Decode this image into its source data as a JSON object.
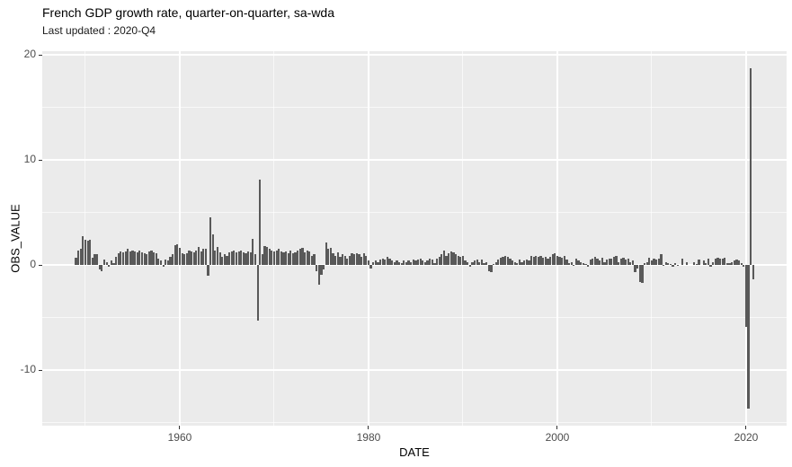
{
  "header": {
    "title": "French GDP growth rate, quarter-on-quarter, sa-wda",
    "subtitle": "Last updated : 2020-Q4"
  },
  "chart_data": {
    "type": "bar",
    "title": "French GDP growth rate, quarter-on-quarter, sa-wda",
    "subtitle": "Last updated : 2020-Q4",
    "xlabel": "DATE",
    "ylabel": "OBS_VALUE",
    "x_ticks": [
      1960,
      1980,
      2000,
      2020
    ],
    "x_minor_gridlines": [
      1950,
      1970,
      1990,
      2010
    ],
    "y_ticks": [
      20,
      10,
      0,
      -10
    ],
    "y_minor_gridlines": [
      15,
      5,
      -5,
      -15
    ],
    "xlim": [
      1945.43,
      2024.29
    ],
    "ylim": [
      -15.3,
      20.35
    ],
    "grid": true,
    "legend": "none",
    "frequency": "quarterly",
    "start_period": "1949-Q1",
    "end_period": "2020-Q4",
    "notable_points": {
      "1968-Q2": -5.3,
      "1968-Q3": 8.1,
      "2020-Q1": -5.9,
      "2020-Q2": -13.7,
      "2020-Q3": 18.7,
      "2020-Q4": -1.4
    },
    "series": [
      {
        "name": "OBS_VALUE",
        "values": [
          0.7,
          1.4,
          1.5,
          2.7,
          2.4,
          2.3,
          2.4,
          0.7,
          1.0,
          1.0,
          -0.4,
          -0.6,
          0.5,
          0.3,
          -0.2,
          0.4,
          0.2,
          0.8,
          1.1,
          1.3,
          1.2,
          1.3,
          1.5,
          1.3,
          1.4,
          1.3,
          1.2,
          1.4,
          1.2,
          1.1,
          1.0,
          1.3,
          1.4,
          1.2,
          1.1,
          0.6,
          0.4,
          -0.2,
          0.5,
          0.4,
          0.8,
          1.0,
          1.9,
          2.0,
          1.6,
          1.1,
          1.0,
          1.1,
          1.4,
          1.3,
          1.2,
          1.4,
          1.7,
          1.3,
          1.5,
          1.5,
          -1.0,
          4.5,
          2.9,
          1.4,
          1.7,
          1.2,
          0.8,
          1.0,
          0.9,
          1.2,
          1.3,
          1.4,
          1.2,
          1.3,
          1.4,
          1.2,
          1.1,
          1.3,
          1.2,
          2.5,
          1.0,
          -5.3,
          8.1,
          1.0,
          1.8,
          1.7,
          1.5,
          1.4,
          1.3,
          1.4,
          1.5,
          1.3,
          1.2,
          1.3,
          1.1,
          1.4,
          1.1,
          1.2,
          1.4,
          1.5,
          1.6,
          1.2,
          1.4,
          1.3,
          0.9,
          1.0,
          -0.6,
          -1.9,
          -0.9,
          -0.4,
          2.1,
          1.5,
          1.6,
          1.1,
          0.9,
          1.2,
          0.8,
          1.0,
          0.9,
          0.6,
          0.9,
          1.1,
          1.0,
          1.1,
          1.0,
          0.8,
          1.1,
          0.9,
          0.4,
          -0.3,
          0.3,
          0.4,
          0.3,
          0.5,
          0.6,
          0.5,
          0.8,
          0.6,
          0.4,
          0.3,
          0.4,
          0.3,
          0.2,
          0.4,
          0.3,
          0.4,
          0.3,
          0.5,
          0.4,
          0.5,
          0.6,
          0.4,
          0.3,
          0.4,
          0.6,
          0.5,
          0.2,
          0.6,
          0.8,
          1.0,
          1.4,
          0.9,
          1.1,
          1.3,
          1.2,
          1.0,
          0.9,
          0.8,
          0.9,
          0.4,
          0.3,
          -0.2,
          0.3,
          0.4,
          0.5,
          0.3,
          0.5,
          0.2,
          0.3,
          -0.6,
          -0.7,
          0.1,
          0.3,
          0.5,
          0.7,
          0.8,
          0.9,
          0.8,
          0.6,
          0.4,
          0.3,
          0.2,
          0.5,
          0.3,
          0.4,
          0.5,
          0.4,
          0.9,
          0.8,
          0.9,
          0.8,
          0.9,
          0.7,
          0.8,
          0.6,
          0.8,
          1.0,
          1.1,
          0.9,
          0.8,
          0.7,
          0.9,
          0.5,
          0.2,
          0.3,
          -0.1,
          0.6,
          0.4,
          0.3,
          0.2,
          0.1,
          -0.2,
          0.5,
          0.6,
          0.8,
          0.6,
          0.4,
          0.7,
          0.3,
          0.5,
          0.6,
          0.6,
          0.8,
          0.9,
          0.3,
          0.6,
          0.7,
          0.5,
          0.6,
          0.3,
          0.4,
          -0.7,
          -0.3,
          -1.6,
          -1.7,
          0.2,
          0.3,
          0.7,
          0.4,
          0.6,
          0.5,
          0.6,
          1.0,
          -0.1,
          0.3,
          0.2,
          0.1,
          -0.2,
          0.2,
          -0.1,
          0.0,
          0.6,
          0.0,
          0.3,
          0.0,
          0.0,
          0.3,
          0.1,
          0.5,
          0.0,
          0.4,
          0.2,
          0.6,
          -0.2,
          0.3,
          0.6,
          0.7,
          0.6,
          0.6,
          0.7,
          0.2,
          0.2,
          0.3,
          0.4,
          0.5,
          0.4,
          0.2,
          -0.2,
          -5.9,
          -13.7,
          18.7,
          -1.4
        ]
      }
    ],
    "colors": {
      "bar": "#595959",
      "panel_background": "#EBEBEB",
      "gridline": "#FFFFFF",
      "axis_text": "#4D4D4D",
      "tick_mark": "#333333",
      "title_text": "#000000"
    }
  }
}
